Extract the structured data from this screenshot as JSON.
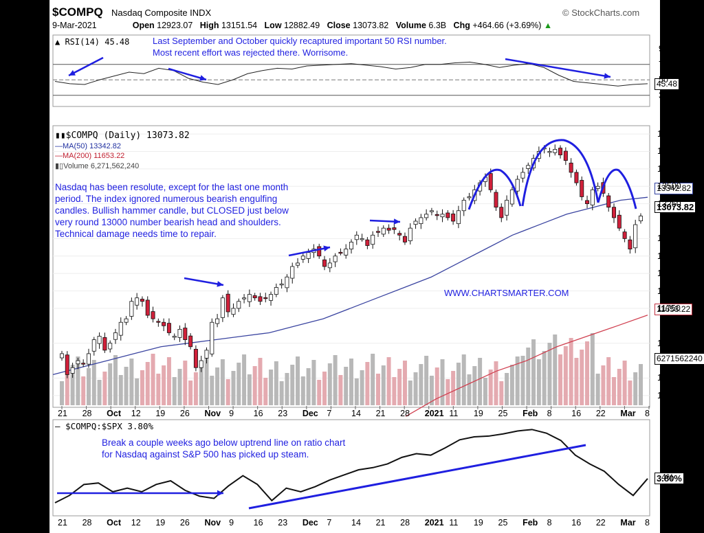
{
  "header": {
    "symbol": "$COMPQ",
    "name": "Nasdaq Composite INDX",
    "credit": "© StockCharts.com",
    "date": "9-Mar-2021",
    "open_label": "Open",
    "open": "12923.07",
    "high_label": "High",
    "high": "13151.54",
    "low_label": "Low",
    "low": "12882.49",
    "close_label": "Close",
    "close": "13073.82",
    "volume_label": "Volume",
    "volume": "6.3B",
    "chg_label": "Chg",
    "chg": "+464.66 (+3.69%)"
  },
  "annotations": {
    "rsi_line1": "Last September and October quickly recaptured important 50 RSI number.",
    "rsi_line2": "Most recent effort was rejected there. Worrisome.",
    "main": [
      "Nasdaq has been resolute, except for the last one month",
      "period. The index ignored numerous bearish engulfing",
      "candles. Bullish hammer candle, but CLOSED just below",
      "very round 13000 number bearish head and shoulders.",
      "Technical damage needs time to repair."
    ],
    "website": "WWW.CHARTSMARTER.COM",
    "ratio_line1": "Break a couple weeks ago below uptrend line on ratio chart",
    "ratio_line2": "for Nasdaq against S&P 500 has picked up steam."
  },
  "colors": {
    "annotation": "#1f1fe0",
    "bull_candle": "#ffffff",
    "bear_candle": "#d0203a",
    "ma50": "#3a44a0",
    "ma200": "#d04050",
    "volume_up": "#b8b8b8",
    "volume_down": "#e4aab0",
    "ratio_line": "#111111",
    "rsi_line": "#222222"
  },
  "rsi": {
    "legend": "RSI(14) 45.48",
    "current_box": "45.48",
    "ticks": [
      "90",
      "70",
      "50",
      "30"
    ],
    "overbought": 70,
    "oversold": 30
  },
  "price": {
    "legend": "$COMPQ (Daily) 13073.82",
    "ma50_legend": "MA(50) 13342.82",
    "ma200_legend": "MA(200) 11653.22",
    "volume_legend": "Volume 6,271,562,240",
    "ma50_box": "13342.82",
    "close_box": "13073.82",
    "ma200_box": "11653.22",
    "volume_box": "6271562240",
    "y_ticks": [
      "14250",
      "14000",
      "13750",
      "13500",
      "13250",
      "12750",
      "12500",
      "12250",
      "12000",
      "11750",
      "11250",
      "10750",
      "10500"
    ],
    "volume_ticks": [
      "12.5B",
      "10.0B",
      "7.5B",
      "5.0B",
      "2.5B"
    ]
  },
  "ratio": {
    "legend": "$COMPQ:$SPX 3.80%",
    "current_box": "3.80%",
    "y_ticks": [
      "10%",
      "8%",
      "6%",
      "4%",
      "2%",
      "0%"
    ]
  },
  "x_ticks": [
    "21",
    "28",
    "Oct",
    "12",
    "19",
    "26",
    "Nov",
    "9",
    "16",
    "23",
    "Dec",
    "7",
    "14",
    "21",
    "28",
    "2021",
    "11",
    "19",
    "25",
    "Feb",
    "8",
    "16",
    "22",
    "Mar",
    "8"
  ],
  "chart_data": {
    "type": "candlestick",
    "title": "$COMPQ Nasdaq Composite INDX",
    "x_range": [
      "2020-09-18",
      "2021-03-09"
    ],
    "ylim": [
      10400,
      14300
    ],
    "close_series": [
      11100,
      10800,
      10900,
      11000,
      10950,
      11100,
      11300,
      11350,
      11150,
      11250,
      11400,
      11550,
      11600,
      11850,
      11900,
      11850,
      11650,
      11600,
      11550,
      11500,
      11400,
      11350,
      11450,
      11300,
      11200,
      10900,
      11000,
      11150,
      11550,
      11600,
      11900,
      11700,
      11750,
      11850,
      11900,
      11950,
      11900,
      11850,
      11900,
      11950,
      12050,
      12100,
      12200,
      12350,
      12400,
      12500,
      12550,
      12600,
      12500,
      12350,
      12400,
      12500,
      12550,
      12600,
      12700,
      12800,
      12750,
      12650,
      12800,
      12850,
      12900,
      12870,
      12880,
      12800,
      12700,
      12900,
      13000,
      13050,
      13100,
      13150,
      13080,
      13100,
      13050,
      13000,
      13150,
      13300,
      13350,
      13450,
      13550,
      13630,
      13450,
      13200,
      13050,
      13300,
      13450,
      13600,
      13700,
      13800,
      13900,
      14000,
      14050,
      14000,
      14030,
      13950,
      13870,
      13700,
      13550,
      13350,
      13250,
      13450,
      13500,
      13400,
      13200,
      13050,
      12900,
      12750,
      12600,
      12950,
      13073
    ],
    "ma50": [
      10800,
      10900,
      11000,
      11100,
      11200,
      11250,
      11300,
      11350,
      11400,
      11500,
      11600,
      11750,
      11900,
      12050,
      12200,
      12400,
      12600,
      12800,
      12950,
      13100,
      13200,
      13300,
      13343
    ],
    "ma200": [
      10200,
      10450,
      10650,
      10850,
      11000,
      11200,
      11350,
      11500,
      11653
    ],
    "rsi": [
      48,
      45,
      44,
      50,
      55,
      60,
      58,
      65,
      62,
      52,
      47,
      44,
      50,
      58,
      62,
      65,
      64,
      68,
      69,
      70,
      71,
      69,
      67,
      64,
      66,
      70,
      70,
      72,
      73,
      70,
      66,
      69,
      71,
      66,
      56,
      48,
      46,
      44,
      42,
      44,
      45
    ],
    "rsi_ylim": [
      20,
      100
    ],
    "ratio_pct": [
      0.5,
      1.5,
      3.0,
      3.2,
      2.0,
      2.5,
      2.0,
      3.0,
      3.5,
      2.2,
      1.4,
      1.1,
      2.8,
      4.2,
      3.0,
      0.8,
      2.5,
      2.0,
      2.7,
      3.6,
      4.3,
      5.0,
      5.3,
      5.8,
      6.7,
      7.2,
      7.0,
      8.0,
      9.1,
      9.5,
      9.6,
      9.9,
      10.3,
      10.5,
      10.0,
      9.0,
      7.0,
      5.8,
      4.8,
      3.0,
      1.5,
      3.8
    ],
    "ratio_ylim": [
      -1,
      11
    ],
    "xlabel": "",
    "ylabel": "",
    "grid": true
  }
}
